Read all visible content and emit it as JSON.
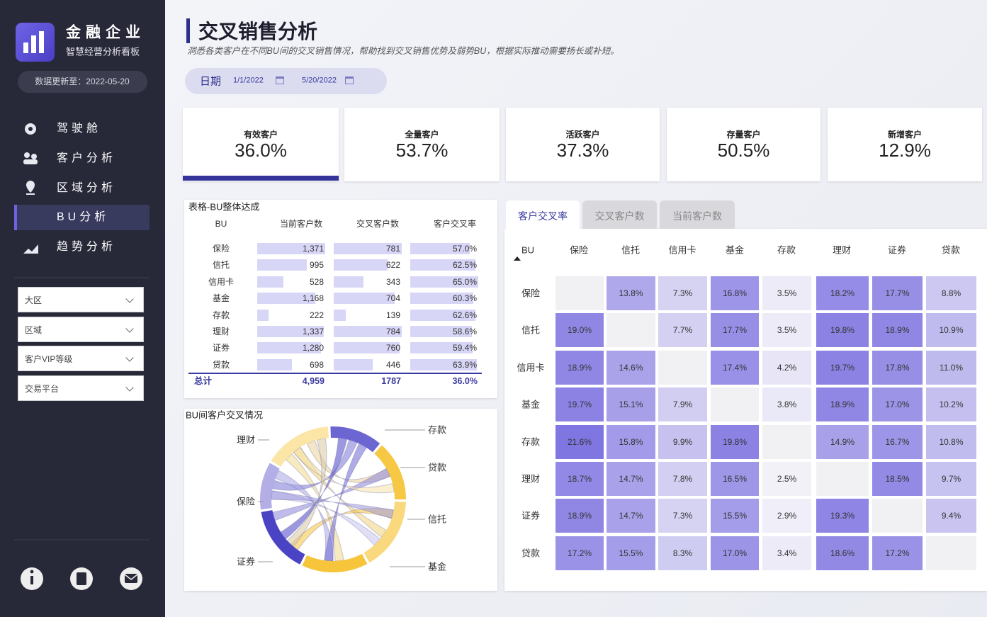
{
  "sidebar": {
    "brand": "金融企业",
    "subtitle": "智慧经营分析看板",
    "update": "数据更新至：2022-05-20",
    "nav": [
      "驾驶舱",
      "客户分析",
      "区域分析",
      "BU分析",
      "趋势分析"
    ],
    "filters": [
      "大区",
      "区域",
      "客户VIP等级",
      "交易平台"
    ]
  },
  "header": {
    "title": "交叉销售分析",
    "description": "洞悉各类客户在不同BU间的交叉销售情况，帮助找到交叉销售优势及弱势BU，根据实际推动需要扬长或补短。",
    "date_label": "日期",
    "date_start": "1/1/2022",
    "date_end": "5/20/2022"
  },
  "kpis": [
    {
      "label": "有效客户",
      "value": "36.0%"
    },
    {
      "label": "全量客户",
      "value": "53.7%"
    },
    {
      "label": "活跃客户",
      "value": "37.3%"
    },
    {
      "label": "存量客户",
      "value": "50.5%"
    },
    {
      "label": "新增客户",
      "value": "12.9%"
    }
  ],
  "table": {
    "title": "表格-BU整体达成",
    "columns": [
      "BU",
      "当前客户数",
      "交叉客户数",
      "客户交叉率"
    ],
    "rows": [
      {
        "bu": "保险",
        "current": {
          "value": 1371,
          "label": "1,371"
        },
        "cross": 781,
        "rate": {
          "value": 57.0,
          "label": "57.0%"
        }
      },
      {
        "bu": "信托",
        "current": 995,
        "cross": 622,
        "rate": {
          "value": 62.5,
          "label": "62.5%"
        }
      },
      {
        "bu": "信用卡",
        "current": 528,
        "cross": 343,
        "rate": {
          "value": 65.0,
          "label": "65.0%"
        }
      },
      {
        "bu": "基金",
        "current": {
          "value": 1168,
          "label": "1,168"
        },
        "cross": 704,
        "rate": {
          "value": 60.3,
          "label": "60.3%"
        }
      },
      {
        "bu": "存款",
        "current": 222,
        "cross": 139,
        "rate": {
          "value": 62.6,
          "label": "62.6%"
        }
      },
      {
        "bu": "理财",
        "current": {
          "value": 1337,
          "label": "1,337"
        },
        "cross": 784,
        "rate": {
          "value": 58.6,
          "label": "58.6%"
        }
      },
      {
        "bu": "证券",
        "current": {
          "value": 1280,
          "label": "1,280"
        },
        "cross": 760,
        "rate": {
          "value": 59.4,
          "label": "59.4%"
        }
      },
      {
        "bu": "贷款",
        "current": 698,
        "cross": 446,
        "rate": {
          "value": 63.9,
          "label": "63.9%"
        }
      }
    ],
    "total": [
      "总计",
      "4,959",
      "1787",
      "36.0%"
    ]
  },
  "chord": {
    "title": "BU间客户交叉情况",
    "labels": [
      "理财",
      "保险",
      "证券",
      "存款",
      "贷款",
      "信托",
      "基金"
    ]
  },
  "matrix": {
    "tabs": [
      "客户交叉率",
      "交叉客户数",
      "当前客户数"
    ],
    "columns": [
      "BU",
      "保险",
      "信托",
      "信用卡",
      "基金",
      "存款",
      "理财",
      "证券",
      "贷款"
    ],
    "rows": [
      {
        "name": "保险",
        "values": [
          null,
          13.8,
          7.3,
          16.8,
          3.5,
          18.2,
          17.7,
          8.8
        ],
        "value_labels": [
          null,
          "13.8%",
          "7.3%",
          "16.8%",
          "3.5%",
          "18.2%",
          "17.7%",
          "8.8%"
        ]
      },
      {
        "name": "信托",
        "values": [
          19.0,
          null,
          7.7,
          17.7,
          3.5,
          19.8,
          18.9,
          10.9
        ],
        "value_labels": [
          "19.0%",
          null,
          "7.7%",
          "17.7%",
          "3.5%",
          "19.8%",
          "18.9%",
          "10.9%"
        ]
      },
      {
        "name": "信用卡",
        "values": [
          18.9,
          14.6,
          null,
          17.4,
          4.2,
          19.7,
          17.8,
          11.0
        ],
        "value_labels": [
          "18.9%",
          "14.6%",
          null,
          "17.4%",
          "4.2%",
          "19.7%",
          "17.8%",
          "11.0%"
        ]
      },
      {
        "name": "基金",
        "values": [
          19.7,
          15.1,
          7.9,
          null,
          3.8,
          18.9,
          17.0,
          10.2
        ],
        "value_labels": [
          "19.7%",
          "15.1%",
          "7.9%",
          null,
          "3.8%",
          "18.9%",
          "17.0%",
          "10.2%"
        ]
      },
      {
        "name": "存款",
        "values": [
          21.6,
          15.8,
          9.9,
          19.8,
          null,
          14.9,
          16.7,
          10.8
        ],
        "value_labels": [
          "21.6%",
          "15.8%",
          "9.9%",
          "19.8%",
          null,
          "14.9%",
          "16.7%",
          "10.8%"
        ]
      },
      {
        "name": "理财",
        "values": [
          18.7,
          14.7,
          7.8,
          16.5,
          2.5,
          null,
          18.5,
          9.7
        ],
        "value_labels": [
          "18.7%",
          "14.7%",
          "7.8%",
          "16.5%",
          "2.5%",
          null,
          "18.5%",
          "9.7%"
        ]
      },
      {
        "name": "证券",
        "values": [
          18.9,
          14.7,
          7.3,
          15.5,
          2.9,
          19.3,
          null,
          9.4
        ],
        "value_labels": [
          "18.9%",
          "14.7%",
          "7.3%",
          "15.5%",
          "2.9%",
          "19.3%",
          null,
          "9.4%"
        ]
      },
      {
        "name": "贷款",
        "values": [
          17.2,
          15.5,
          8.3,
          17.0,
          3.4,
          18.6,
          17.2,
          null
        ],
        "value_labels": [
          "17.2%",
          "15.5%",
          "8.3%",
          "17.0%",
          "3.4%",
          "18.6%",
          "17.2%",
          null
        ]
      }
    ]
  }
}
